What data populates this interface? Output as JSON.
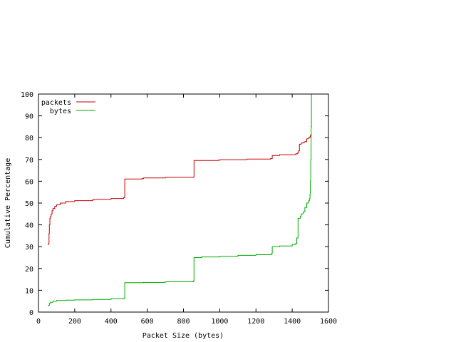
{
  "chart_data": {
    "type": "line",
    "title": "",
    "xlabel": "Packet Size (bytes)",
    "ylabel": "Cumulative Percentage",
    "xlim": [
      0,
      1600
    ],
    "ylim": [
      0,
      100
    ],
    "xticks": [
      0,
      200,
      400,
      600,
      800,
      1000,
      1200,
      1400,
      1600
    ],
    "yticks": [
      0,
      10,
      20,
      30,
      40,
      50,
      60,
      70,
      80,
      90,
      100
    ],
    "grid": false,
    "legend_position": "top-left",
    "series": [
      {
        "name": "packets",
        "color": "#cc0000",
        "points": [
          [
            52,
            31
          ],
          [
            55,
            31.5
          ],
          [
            58,
            36
          ],
          [
            60,
            40
          ],
          [
            63,
            43
          ],
          [
            66,
            44
          ],
          [
            70,
            45
          ],
          [
            75,
            46.5
          ],
          [
            80,
            47.5
          ],
          [
            90,
            48.5
          ],
          [
            100,
            49.2
          ],
          [
            120,
            50
          ],
          [
            150,
            50.7
          ],
          [
            200,
            51.1
          ],
          [
            300,
            51.7
          ],
          [
            400,
            52.1
          ],
          [
            470,
            52.5
          ],
          [
            474,
            52.5
          ],
          [
            476,
            61
          ],
          [
            570,
            61.2
          ],
          [
            580,
            61.5
          ],
          [
            700,
            61.8
          ],
          [
            855,
            61.9
          ],
          [
            858,
            69.5
          ],
          [
            990,
            69.6
          ],
          [
            1000,
            69.9
          ],
          [
            1150,
            70.2
          ],
          [
            1280,
            70.4
          ],
          [
            1290,
            71.8
          ],
          [
            1330,
            72.2
          ],
          [
            1420,
            72.6
          ],
          [
            1430,
            73
          ],
          [
            1435,
            74
          ],
          [
            1440,
            77
          ],
          [
            1450,
            77.5
          ],
          [
            1460,
            77.8
          ],
          [
            1470,
            78.2
          ],
          [
            1480,
            79.5
          ],
          [
            1490,
            80
          ],
          [
            1498,
            80.5
          ],
          [
            1500,
            81
          ],
          [
            1505,
            81.8
          ]
        ]
      },
      {
        "name": "bytes",
        "color": "#00aa00",
        "points": [
          [
            52,
            3
          ],
          [
            58,
            3
          ],
          [
            60,
            4
          ],
          [
            66,
            4.5
          ],
          [
            80,
            5
          ],
          [
            100,
            5.3
          ],
          [
            150,
            5.5
          ],
          [
            200,
            5.6
          ],
          [
            300,
            5.8
          ],
          [
            400,
            6.1
          ],
          [
            470,
            6.2
          ],
          [
            474,
            6.5
          ],
          [
            476,
            13.5
          ],
          [
            580,
            13.6
          ],
          [
            700,
            13.9
          ],
          [
            855,
            14.3
          ],
          [
            858,
            25
          ],
          [
            900,
            25.3
          ],
          [
            1000,
            25.6
          ],
          [
            1100,
            26
          ],
          [
            1200,
            26.3
          ],
          [
            1285,
            26.8
          ],
          [
            1290,
            30
          ],
          [
            1330,
            30.3
          ],
          [
            1400,
            31
          ],
          [
            1420,
            31.5
          ],
          [
            1425,
            34
          ],
          [
            1432,
            43
          ],
          [
            1445,
            44
          ],
          [
            1450,
            45
          ],
          [
            1460,
            46
          ],
          [
            1470,
            48
          ],
          [
            1480,
            50
          ],
          [
            1490,
            51
          ],
          [
            1495,
            52
          ],
          [
            1498,
            54
          ],
          [
            1500,
            60
          ],
          [
            1502,
            70
          ],
          [
            1504,
            85
          ],
          [
            1506,
            100
          ]
        ]
      }
    ]
  }
}
